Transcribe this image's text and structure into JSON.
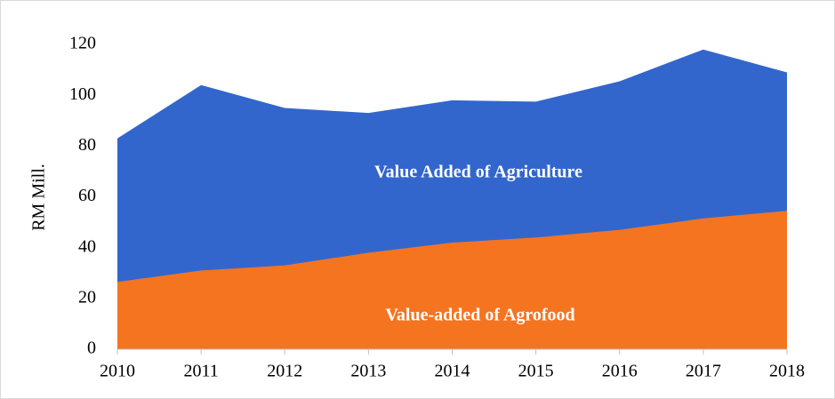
{
  "chart_data": {
    "type": "area",
    "y_label": "RM Mill.",
    "x": [
      2010,
      2011,
      2012,
      2013,
      2014,
      2015,
      2016,
      2017,
      2018
    ],
    "xlim": [
      2010,
      2018
    ],
    "xticks": [
      2010,
      2011,
      2012,
      2013,
      2014,
      2015,
      2016,
      2017,
      2018
    ],
    "ylim": [
      0,
      120
    ],
    "yticks": [
      0,
      20,
      40,
      60,
      80,
      100,
      120
    ],
    "grid": false,
    "series": [
      {
        "name": "Value Added of Agriculture",
        "color": "#3266cc",
        "values": [
          83,
          104,
          95,
          93,
          98,
          97.5,
          105.5,
          118,
          109
        ]
      },
      {
        "name": "Value-added of Agrofood",
        "color": "#f57420",
        "values": [
          26.5,
          31,
          33,
          38,
          42,
          44,
          47,
          51.5,
          54.5
        ]
      }
    ],
    "annotations": [
      {
        "text": "Value Added of Agriculture"
      },
      {
        "text": "Value-added of Agrofood"
      }
    ]
  }
}
